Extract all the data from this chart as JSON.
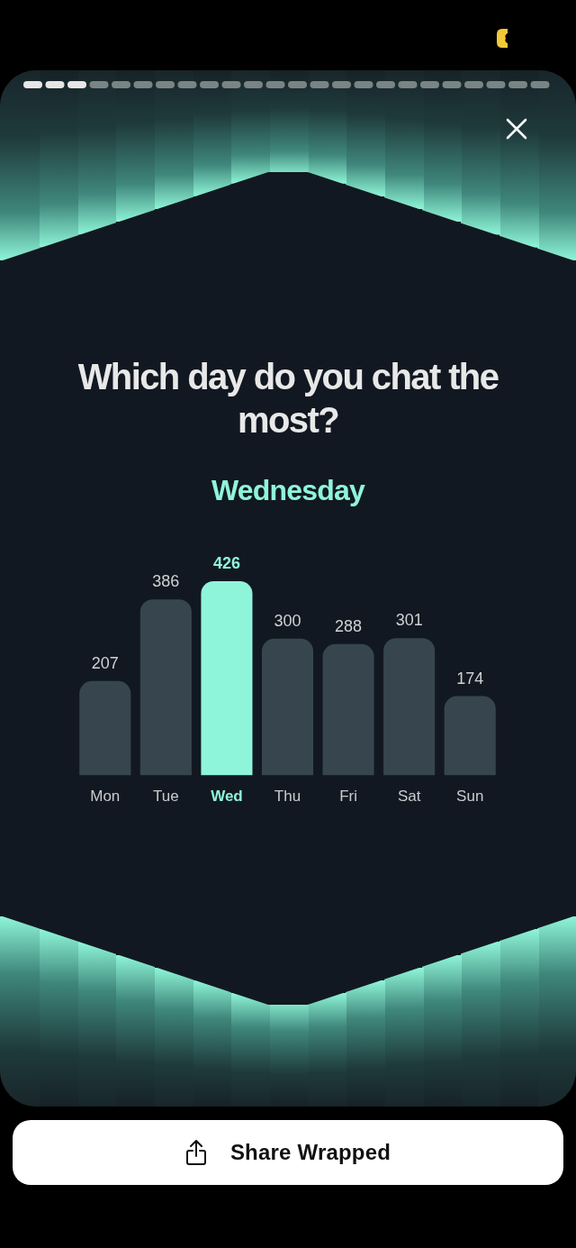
{
  "chart_data": {
    "type": "bar",
    "title": "Which day do you chat the most?",
    "subtitle": "Wednesday",
    "categories": [
      "Mon",
      "Tue",
      "Wed",
      "Thu",
      "Fri",
      "Sat",
      "Sun"
    ],
    "values": [
      207,
      386,
      426,
      300,
      288,
      301,
      174
    ],
    "colors": [
      "#37464e",
      "#37464e",
      "#8ff5da",
      "#37464e",
      "#37464e",
      "#37464e",
      "#37464e"
    ],
    "data_labels": true,
    "grid": false,
    "legend": false,
    "annotations": [
      "Share Wrapped"
    ]
  }
}
